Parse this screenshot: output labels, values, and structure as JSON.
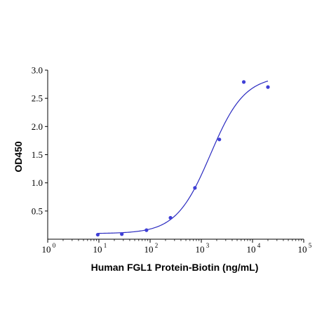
{
  "chart_data": {
    "type": "scatter",
    "title": "",
    "xlabel": "Human FGL1 Protein-Biotin (ng/mL)",
    "ylabel": "OD450",
    "xscale": "log",
    "xlim": [
      1,
      100000
    ],
    "ylim": [
      0,
      3.0
    ],
    "x_ticks": [
      {
        "value": 1,
        "base": "10",
        "exp": "0"
      },
      {
        "value": 10,
        "base": "10",
        "exp": "1"
      },
      {
        "value": 100,
        "base": "10",
        "exp": "2"
      },
      {
        "value": 1000,
        "base": "10",
        "exp": "3"
      },
      {
        "value": 10000,
        "base": "10",
        "exp": "4"
      },
      {
        "value": 100000,
        "base": "10",
        "exp": "5"
      }
    ],
    "y_ticks": [
      {
        "value": 0.5,
        "label": "0.5"
      },
      {
        "value": 1.0,
        "label": "1.0"
      },
      {
        "value": 1.5,
        "label": "1.5"
      },
      {
        "value": 2.0,
        "label": "2.0"
      },
      {
        "value": 2.5,
        "label": "2.5"
      },
      {
        "value": 3.0,
        "label": "3.0"
      }
    ],
    "grid": false,
    "legend": "none",
    "point_color": "#3f3fd6",
    "curve_color": "#2a2ac0",
    "points": [
      {
        "x": 9.5,
        "y": 0.08
      },
      {
        "x": 28,
        "y": 0.09
      },
      {
        "x": 85,
        "y": 0.16
      },
      {
        "x": 250,
        "y": 0.38
      },
      {
        "x": 750,
        "y": 0.91
      },
      {
        "x": 2250,
        "y": 1.77
      },
      {
        "x": 6750,
        "y": 2.79
      },
      {
        "x": 20000,
        "y": 2.7
      }
    ],
    "fit": {
      "model": "4PL",
      "bottom": 0.1,
      "top": 2.9,
      "ec50": 1500,
      "hill": 1.3,
      "x_range": [
        9.5,
        20000
      ]
    }
  }
}
